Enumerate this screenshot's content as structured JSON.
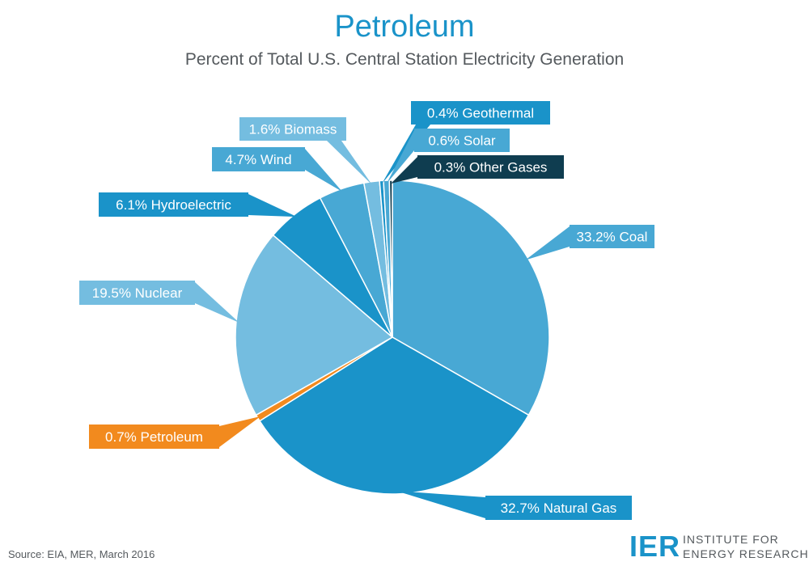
{
  "chart_data": {
    "type": "pie",
    "title": "Petroleum",
    "subtitle": "Percent of Total U.S. Central Station Electricity Generation",
    "start_angle_deg": 0,
    "direction": "clockwise",
    "slices": [
      {
        "name": "Coal",
        "value": 33.2,
        "label": "33.2% Coal",
        "color": "#48a8d4"
      },
      {
        "name": "Natural Gas",
        "value": 32.7,
        "label": "32.7% Natural Gas",
        "color": "#1a93c9"
      },
      {
        "name": "Petroleum",
        "value": 0.7,
        "label": "0.7% Petroleum",
        "color": "#f28a1e"
      },
      {
        "name": "Nuclear",
        "value": 19.5,
        "label": "19.5% Nuclear",
        "color": "#74bde0"
      },
      {
        "name": "Hydroelectric",
        "value": 6.1,
        "label": "6.1% Hydroelectric",
        "color": "#1a93c9"
      },
      {
        "name": "Wind",
        "value": 4.7,
        "label": "4.7% Wind",
        "color": "#48a8d4"
      },
      {
        "name": "Biomass",
        "value": 1.6,
        "label": "1.6% Biomass",
        "color": "#74bde0"
      },
      {
        "name": "Geothermal",
        "value": 0.4,
        "label": "0.4% Geothermal",
        "color": "#1a93c9"
      },
      {
        "name": "Solar",
        "value": 0.6,
        "label": "0.6% Solar",
        "color": "#48a8d4"
      },
      {
        "name": "Other Gases",
        "value": 0.3,
        "label": "0.3% Other Gases",
        "color": "#0f3d50"
      }
    ]
  },
  "source": "Source: EIA, MER, March 2016",
  "logo": {
    "mark": "IER",
    "line1": "INSTITUTE FOR",
    "line2": "ENERGY RESEARCH"
  }
}
